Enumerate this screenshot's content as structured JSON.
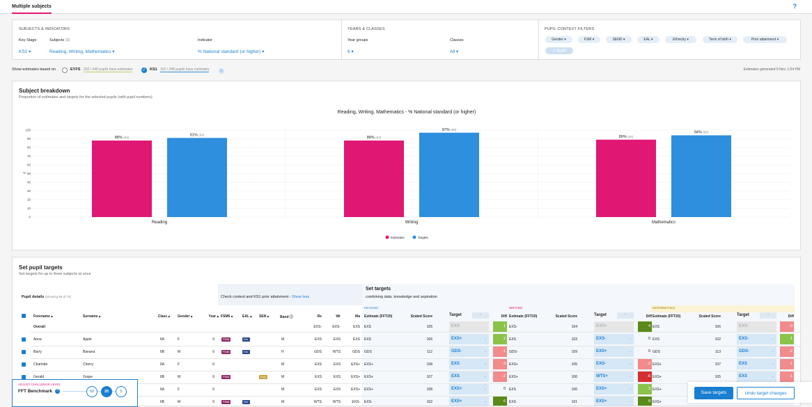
{
  "top": {
    "tab": "Multiple subjects",
    "help": "?"
  },
  "filters": {
    "subjects_indicators": {
      "heading": "SUBJECTS & INDICATORS",
      "key_stage_label": "Key Stage",
      "key_stage": "KS2",
      "subjects_label": "Subjects",
      "subjects_count": "(3)",
      "subjects": "Reading, Writing, Mathematics",
      "indicator_label": "Indicator",
      "indicator": "% National standard (or higher)"
    },
    "years_classes": {
      "heading": "YEARS & CLASSES",
      "year_groups_label": "Year groups",
      "year_groups": "6",
      "classes_label": "Classes",
      "classes": "All"
    },
    "pupil_context": {
      "heading": "PUPIL CONTEXT FILTERS",
      "chips": [
        "Gender",
        "FSM",
        "SEND",
        "EAL",
        "Ethnicity",
        "Term of birth",
        "Prior attainment"
      ],
      "apply": "Apply"
    }
  },
  "estimates_bar": {
    "label": "Show estimates based on",
    "eyfs": "EYFS",
    "eyfs_note": "202 / 248 pupils have estimates",
    "ks1": "KS1",
    "ks1_note": "162 / 248 pupils have estimates",
    "generated": "Estimates generated 9 Nov, 1:04 PM"
  },
  "breakdown": {
    "title": "Subject breakdown",
    "subtitle": "Proportion of estimates and targets for the selected pupils (with pupil numbers)"
  },
  "chart_data": {
    "type": "bar",
    "title": "Reading, Writing, Mathematics - % National standard (or higher)",
    "categories": [
      "Reading",
      "Writing",
      "Mathematics"
    ],
    "ylabel": "%",
    "ylim": [
      0,
      100
    ],
    "yticks": [
      0,
      10,
      20,
      30,
      40,
      50,
      60,
      70,
      80,
      90,
      100
    ],
    "series": [
      {
        "name": "Estimates",
        "color": "#e01874",
        "values": [
          88,
          88,
          89
        ],
        "labels": [
          "88%",
          "88%",
          "89%"
        ],
        "counts": [
          "(64)",
          "(64)",
          "(64)"
        ]
      },
      {
        "name": "Targets",
        "color": "#2d8fde",
        "values": [
          91,
          97,
          94
        ],
        "labels": [
          "91%",
          "97%",
          "94%"
        ],
        "counts": [
          "(64)",
          "(68)",
          "(66)"
        ]
      }
    ]
  },
  "targets": {
    "title": "Set pupil targets",
    "subtitle": "Set targets for up to three subjects at once",
    "pupil_details": "Pupil details",
    "showing": "(showing 59 of 70)",
    "context_title": "Check context and KS1 prior attainment -",
    "show_less": "Show less",
    "set_targets_title": "Set targets",
    "set_targets_sub": "combining data, knowledge and aspiration",
    "cols": {
      "forename": "Forename",
      "surname": "Surname",
      "class": "Class",
      "gender": "Gender",
      "year": "Year",
      "fsm6": "FSM6",
      "eal": "EAL",
      "sen": "SEN",
      "band": "Band",
      "re": "Re",
      "wr": "Wr",
      "ma": "Ma"
    },
    "subjects": [
      {
        "name": "READING"
      },
      {
        "name": "WRITING"
      },
      {
        "name": "MATHEMATICS"
      }
    ],
    "sub_cols": {
      "estimate": "Estimate (FFT20)",
      "scaled": "Scaled Score",
      "target": "Target",
      "diff": "Diff"
    },
    "overall": {
      "name": "Overall",
      "re": "EXS-",
      "wr": "EXS-",
      "ma": "EXS",
      "subs": [
        {
          "est": "EXS",
          "score": "105",
          "tgt": "EXS",
          "diff": "1"
        },
        {
          "est": "EXS-",
          "score": "104",
          "tgt": "EXS+",
          "diff": "4"
        },
        {
          "est": "EXS",
          "score": "106",
          "tgt": "EXS-",
          "diff": "-3"
        }
      ]
    },
    "rows": [
      {
        "fore": "Anna",
        "sur": "Apple",
        "cls": "6A",
        "gen": "F",
        "yr": "6",
        "fsm": "FSM6",
        "eal": "EAL",
        "sen": "",
        "band": "M",
        "re": "EXS",
        "wr": "EXS",
        "ma": "EXS",
        "subs": [
          {
            "est": "EXS",
            "score": "106",
            "tgt": "EXS+",
            "diff": "2"
          },
          {
            "est": "EXS",
            "score": "103",
            "tgt": "EXS-",
            "diff": "0"
          },
          {
            "est": "EXS",
            "score": "102",
            "tgt": "EXS-",
            "diff": "1"
          }
        ]
      },
      {
        "fore": "Barry",
        "sur": "Banana",
        "cls": "6B",
        "gen": "M",
        "yr": "6",
        "fsm": "FSM6",
        "eal": "EAL",
        "sen": "",
        "band": "H",
        "re": "GDS",
        "wr": "WTS",
        "ma": "GDS",
        "subs": [
          {
            "est": "GDS",
            "score": "112",
            "tgt": "GDS-",
            "diff": "-1"
          },
          {
            "est": "GDS-",
            "score": "109",
            "tgt": "EXS+",
            "diff": "0"
          },
          {
            "est": "GDS",
            "score": "113",
            "tgt": "GDS-",
            "diff": "-2"
          }
        ]
      },
      {
        "fore": "Charlotte",
        "sur": "Cherry",
        "cls": "6A",
        "gen": "F",
        "yr": "6",
        "fsm": "",
        "eal": "",
        "sen": "",
        "band": "M",
        "re": "EXS",
        "wr": "EXS",
        "ma": "EXS+",
        "subs": [
          {
            "est": "EXS+",
            "score": "108",
            "tgt": "EXS",
            "diff": "-3"
          },
          {
            "est": "EXS+",
            "score": "105",
            "tgt": "EXS-",
            "diff": "-2"
          },
          {
            "est": "EXS+",
            "score": "107",
            "tgt": "EXS",
            "diff": "-1"
          }
        ]
      },
      {
        "fore": "Gerald",
        "sur": "Grape",
        "cls": "6B",
        "gen": "M",
        "yr": "6",
        "fsm": "FSM6",
        "eal": "",
        "sen": "Supp",
        "band": "M",
        "re": "EXS",
        "wr": "EXS",
        "ma": "EXS+",
        "subs": [
          {
            "est": "EXS+",
            "score": "107",
            "tgt": "EXS",
            "diff": "-2"
          },
          {
            "est": "EXS+",
            "score": "106",
            "tgt": "WTS+",
            "diff": "-6"
          },
          {
            "est": "EXS+",
            "score": "105",
            "tgt": "EXS",
            "diff": "-1"
          }
        ]
      },
      {
        "fore": "",
        "sur": "",
        "cls": "6A",
        "gen": "F",
        "yr": "6",
        "fsm": "",
        "eal": "",
        "sen": "",
        "band": "M",
        "re": "EXS",
        "wr": "EXS",
        "ma": "EXS+",
        "subs": [
          {
            "est": "EXS+",
            "score": "108",
            "tgt": "EXS+",
            "diff": "0"
          },
          {
            "est": "EXS",
            "score": "106",
            "tgt": "EXS+",
            "diff": "3"
          },
          {
            "est": "EXS+",
            "score": "",
            "tgt": "",
            "diff": ""
          }
        ]
      },
      {
        "fore": "",
        "sur": "",
        "cls": "6B",
        "gen": "M",
        "yr": "6",
        "fsm": "FSM6",
        "eal": "EAL",
        "sen": "",
        "band": "M",
        "re": "WTS",
        "wr": "WTS",
        "ma": "EXS-",
        "subs": [
          {
            "est": "EXS-",
            "score": "102",
            "tgt": "EXS+",
            "diff": "6"
          },
          {
            "est": "EXS",
            "score": "101",
            "tgt": "EXS+",
            "diff": "8"
          },
          {
            "est": "EXS+",
            "score": "",
            "tgt": "",
            "diff": ""
          }
        ]
      }
    ]
  },
  "challenge": {
    "heading": "ADJUST CHALLENGE LEVEL",
    "name": "FFT Benchmark",
    "levels": [
      "50",
      "20",
      "5"
    ],
    "selected": "20"
  },
  "actions": {
    "save": "Save targets",
    "undo": "Undo target changes"
  }
}
